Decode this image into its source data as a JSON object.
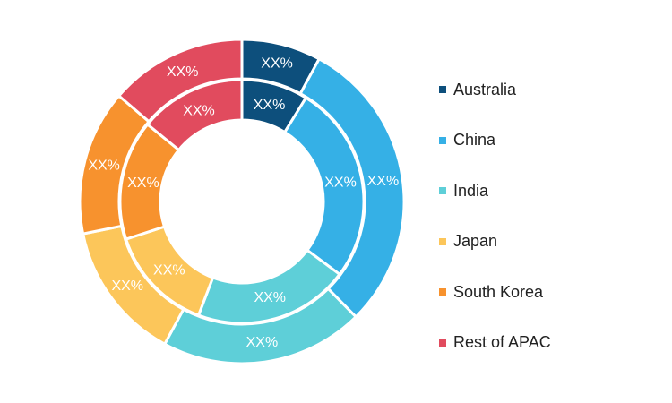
{
  "chart_data": {
    "type": "pie",
    "variant": "double-donut",
    "categories": [
      "Australia",
      "China",
      "India",
      "Japan",
      "South Korea",
      "Rest of APAC"
    ],
    "colors": [
      "#0d4f7c",
      "#35b0e6",
      "#5ecfd8",
      "#fcc65a",
      "#f7922e",
      "#e14b5e"
    ],
    "series": [
      {
        "ring": "outer",
        "values": [
          7.9,
          29.7,
          20.3,
          13.9,
          14.5,
          13.7
        ],
        "labels": [
          "XX%",
          "XX%",
          "XX%",
          "XX%",
          "XX%",
          "XX%"
        ]
      },
      {
        "ring": "inner",
        "values": [
          8.8,
          26.4,
          20.6,
          14.2,
          15.9,
          14.1
        ],
        "labels": [
          "XX%",
          "XX%",
          "XX%",
          "XX%",
          "XX%",
          "XX%"
        ]
      }
    ],
    "legend_position": "right"
  }
}
